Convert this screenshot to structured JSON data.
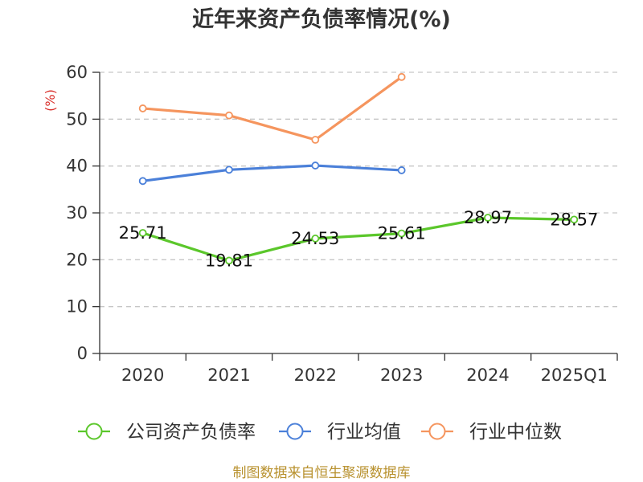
{
  "chart_data": {
    "type": "line",
    "title": "近年来资产负债率情况(%)",
    "ylabel": "(%)",
    "categories": [
      "2020",
      "2021",
      "2022",
      "2023",
      "2024",
      "2025Q1"
    ],
    "ylim": [
      0,
      60
    ],
    "yticks": [
      0,
      10,
      20,
      30,
      40,
      50,
      60
    ],
    "grid": true,
    "legend_position": "bottom",
    "series": [
      {
        "name": "公司资产负债率",
        "color": "#5bc72b",
        "values": [
          25.71,
          19.81,
          24.53,
          25.61,
          28.97,
          28.57
        ],
        "data_labels": true
      },
      {
        "name": "行业均值",
        "color": "#4b80d9",
        "values": [
          36.8,
          39.2,
          40.1,
          39.1,
          null,
          null
        ],
        "data_labels": false
      },
      {
        "name": "行业中位数",
        "color": "#f5955e",
        "values": [
          52.3,
          50.8,
          45.6,
          59.0,
          null,
          null
        ],
        "data_labels": false
      }
    ]
  },
  "source": "制图数据来自恒生聚源数据库"
}
